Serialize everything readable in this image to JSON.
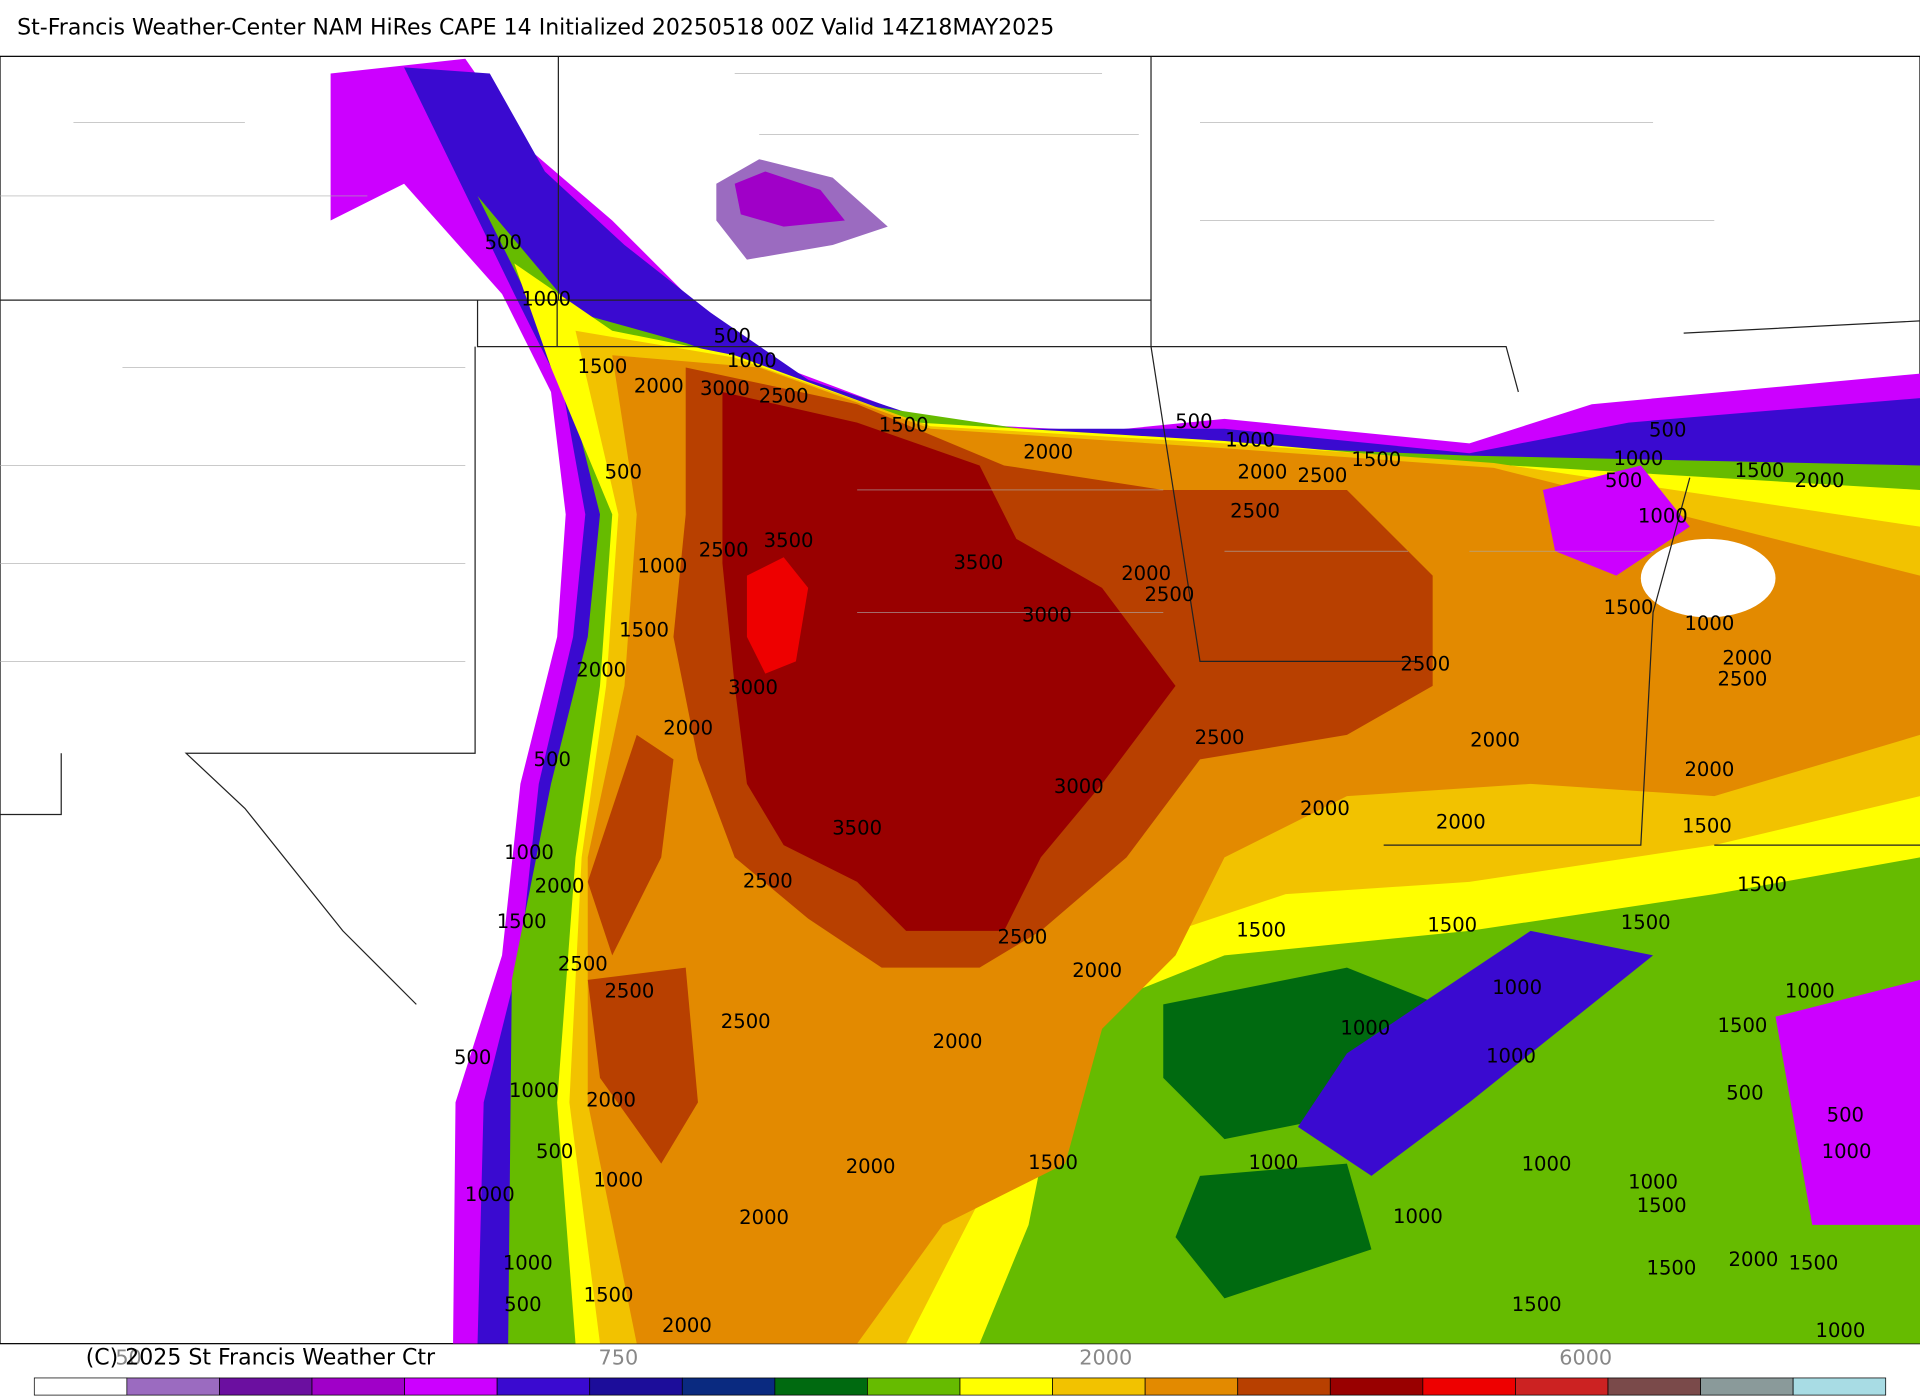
{
  "header": {
    "title": "St-Francis Weather-Center NAM HiRes CAPE  14 Initialized 20250518 00Z Valid 14Z18MAY2025"
  },
  "map": {
    "contour_labels": [
      "500",
      "1000",
      "500",
      "1000",
      "1500",
      "2000",
      "3000",
      "2500",
      "1500",
      "500",
      "1000",
      "2000",
      "2000",
      "2500",
      "1500",
      "500",
      "1000",
      "500",
      "1500",
      "2000",
      "500",
      "2500",
      "1000",
      "2500",
      "3500",
      "1000",
      "3500",
      "2000",
      "2500",
      "3000",
      "1500",
      "1000",
      "1500",
      "2000",
      "2500",
      "2000",
      "2500",
      "3000",
      "2000",
      "2500",
      "2000",
      "500",
      "2000",
      "3000",
      "2000",
      "2000",
      "3500",
      "1500",
      "1000",
      "2000",
      "2500",
      "1500",
      "1500",
      "1500",
      "1500",
      "1500",
      "2500",
      "2500",
      "2000",
      "2500",
      "1000",
      "1000",
      "2500",
      "1000",
      "1500",
      "2000",
      "500",
      "1000",
      "1000",
      "2000",
      "500",
      "500",
      "500",
      "1500",
      "1000",
      "1000",
      "1000",
      "2000",
      "1000",
      "1000",
      "1000",
      "1500",
      "1000",
      "2000",
      "2000",
      "1500",
      "1500",
      "1000",
      "1500",
      "500",
      "2000",
      "1500",
      "1000"
    ]
  },
  "colorbar": {
    "colors": [
      "#ffffff",
      "#9b6bc0",
      "#6b0fa0",
      "#a000c8",
      "#cc00ff",
      "#3a0ad0",
      "#1c0d9a",
      "#0a2a80",
      "#006a10",
      "#66bb00",
      "#ffff00",
      "#f2c200",
      "#e38a00",
      "#b84000",
      "#990000",
      "#ee0000",
      "#cc2222",
      "#7a4a4a",
      "#8a9a9a",
      "#a8dce4"
    ],
    "tick_labels": [
      "50",
      "750",
      "2000",
      "6000"
    ]
  },
  "footer": {
    "copyright": "(C) 2025 St Francis Weather Ctr"
  }
}
